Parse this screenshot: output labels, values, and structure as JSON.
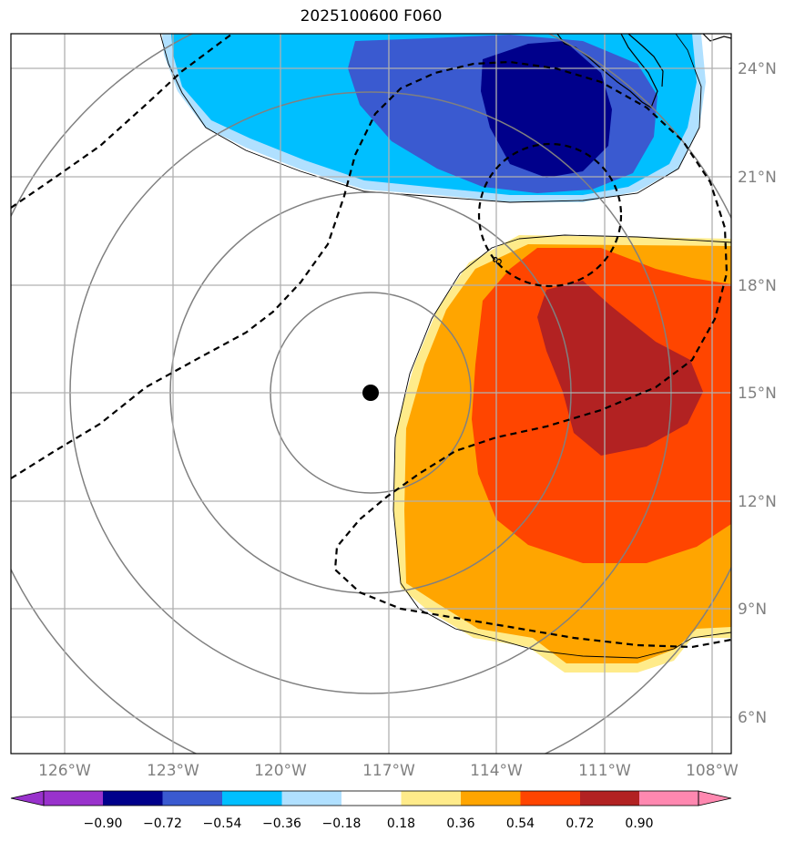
{
  "title": "2025100600 F060",
  "map": {
    "lon_range": [
      -127.5,
      -107.5
    ],
    "lat_range": [
      5,
      25
    ],
    "lon_ticks": [
      {
        "value": -126,
        "label": "126°W"
      },
      {
        "value": -123,
        "label": "123°W"
      },
      {
        "value": -120,
        "label": "120°W"
      },
      {
        "value": -117,
        "label": "117°W"
      },
      {
        "value": -114,
        "label": "114°W"
      },
      {
        "value": -111,
        "label": "111°W"
      },
      {
        "value": -108,
        "label": "108°W"
      }
    ],
    "lat_ticks": [
      {
        "value": 6,
        "label": "6°N"
      },
      {
        "value": 9,
        "label": "9°N"
      },
      {
        "value": 12,
        "label": "12°N"
      },
      {
        "value": 15,
        "label": "15°N"
      },
      {
        "value": 18,
        "label": "18°N"
      },
      {
        "value": 21,
        "label": "21°N"
      },
      {
        "value": 24,
        "label": "24°N"
      }
    ],
    "storm_center": {
      "lon": -117.5,
      "lat": 15.0
    },
    "range_ring_radii_deg": [
      2.75,
      5.5,
      8.25,
      11
    ],
    "contour_label": "8",
    "grid_color": "#b0b0b0",
    "ring_color": "#808080"
  },
  "colorbar": {
    "boundaries": [
      "−0.90",
      "−0.72",
      "−0.54",
      "−0.36",
      "−0.18",
      "0.18",
      "0.36",
      "0.54",
      "0.72",
      "0.90"
    ],
    "under_color": "#9932cc",
    "over_color": "#ff88b0",
    "colors": [
      "#00008b",
      "#3a5ad0",
      "#00bfff",
      "#b0e0ff",
      "#ffffff",
      "#ffeb8a",
      "#ffa500",
      "#ff4500",
      "#b22222"
    ]
  }
}
